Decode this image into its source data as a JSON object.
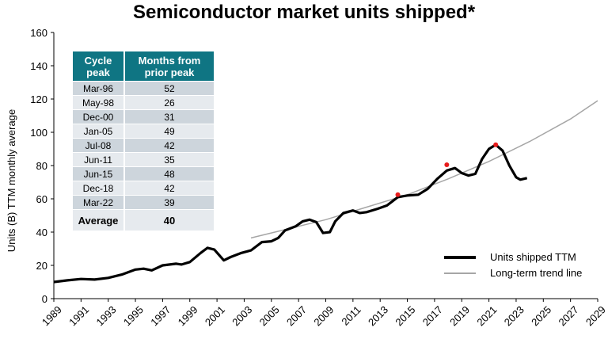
{
  "title": "Semiconductor market units shipped*",
  "chart_data": {
    "type": "line",
    "title": "Semiconductor market units shipped*",
    "ylabel": "Units (B) TTM monthly average",
    "xlabel": "",
    "xlim": [
      1989,
      2029
    ],
    "ylim": [
      0,
      160
    ],
    "y_ticks": [
      "0",
      "20",
      "40",
      "60",
      "80",
      "100",
      "120",
      "140",
      "160"
    ],
    "x_ticks": [
      "1989",
      "1991",
      "1993",
      "1995",
      "1997",
      "1999",
      "2001",
      "2003",
      "2005",
      "2007",
      "2009",
      "2011",
      "2013",
      "2015",
      "2017",
      "2019",
      "2021",
      "2023",
      "2025",
      "2027",
      "2029"
    ],
    "grid": false,
    "legend_position": "bottom-right",
    "series": [
      {
        "name": "Units shipped TTM",
        "color": "#000000",
        "points": [
          [
            1989,
            10
          ],
          [
            1990,
            11
          ],
          [
            1991,
            11.8
          ],
          [
            1992,
            11.5
          ],
          [
            1993,
            12.5
          ],
          [
            1994,
            14.5
          ],
          [
            1995,
            17.5
          ],
          [
            1995.6,
            18
          ],
          [
            1996.2,
            17
          ],
          [
            1997,
            20
          ],
          [
            1998,
            21
          ],
          [
            1998.4,
            20.5
          ],
          [
            1999,
            22
          ],
          [
            1999.8,
            27.5
          ],
          [
            2000.3,
            30.5
          ],
          [
            2000.8,
            29.5
          ],
          [
            2001.5,
            23
          ],
          [
            2002,
            25
          ],
          [
            2002.8,
            27.5
          ],
          [
            2003.5,
            29
          ],
          [
            2004.3,
            34
          ],
          [
            2005,
            34.5
          ],
          [
            2005.5,
            36.5
          ],
          [
            2006,
            41
          ],
          [
            2006.8,
            43.5
          ],
          [
            2007.3,
            46.5
          ],
          [
            2007.8,
            47.5
          ],
          [
            2008.3,
            46
          ],
          [
            2008.8,
            39.5
          ],
          [
            2009.3,
            40
          ],
          [
            2009.7,
            46.5
          ],
          [
            2010.3,
            51.5
          ],
          [
            2011,
            53
          ],
          [
            2011.5,
            51.5
          ],
          [
            2012,
            52
          ],
          [
            2012.8,
            54
          ],
          [
            2013.5,
            56
          ],
          [
            2014.3,
            61
          ],
          [
            2015,
            62
          ],
          [
            2015.8,
            62.5
          ],
          [
            2016.5,
            66
          ],
          [
            2017.2,
            72
          ],
          [
            2017.9,
            77
          ],
          [
            2018.5,
            78.5
          ],
          [
            2019,
            75.5
          ],
          [
            2019.5,
            74
          ],
          [
            2020,
            75
          ],
          [
            2020.5,
            84
          ],
          [
            2021,
            90
          ],
          [
            2021.5,
            92.5
          ],
          [
            2022,
            89
          ],
          [
            2022.5,
            80
          ],
          [
            2023,
            73
          ],
          [
            2023.3,
            71.5
          ],
          [
            2023.8,
            72.5
          ]
        ]
      },
      {
        "name": "Long-term trend line",
        "color": "#a6a6a6",
        "points": [
          [
            2003.5,
            36.5
          ],
          [
            2006,
            41.5
          ],
          [
            2009,
            47.5
          ],
          [
            2012,
            55
          ],
          [
            2015,
            62.5
          ],
          [
            2018,
            72
          ],
          [
            2021,
            82.5
          ],
          [
            2024,
            94.5
          ],
          [
            2027,
            108
          ],
          [
            2029,
            119
          ]
        ]
      }
    ],
    "markers": {
      "color": "#e81c1c",
      "points": [
        [
          2014.3,
          62.5
        ],
        [
          2017.9,
          80.5
        ],
        [
          2021.5,
          92.5
        ]
      ]
    },
    "table": {
      "headers": [
        "Cycle peak",
        "Months from prior peak"
      ],
      "rows": [
        [
          "Mar-96",
          "52"
        ],
        [
          "May-98",
          "26"
        ],
        [
          "Dec-00",
          "31"
        ],
        [
          "Jan-05",
          "49"
        ],
        [
          "Jul-08",
          "42"
        ],
        [
          "Jun-11",
          "35"
        ],
        [
          "Jun-15",
          "48"
        ],
        [
          "Dec-18",
          "42"
        ],
        [
          "Mar-22",
          "39"
        ]
      ],
      "average_label": "Average",
      "average_value": "40"
    }
  }
}
